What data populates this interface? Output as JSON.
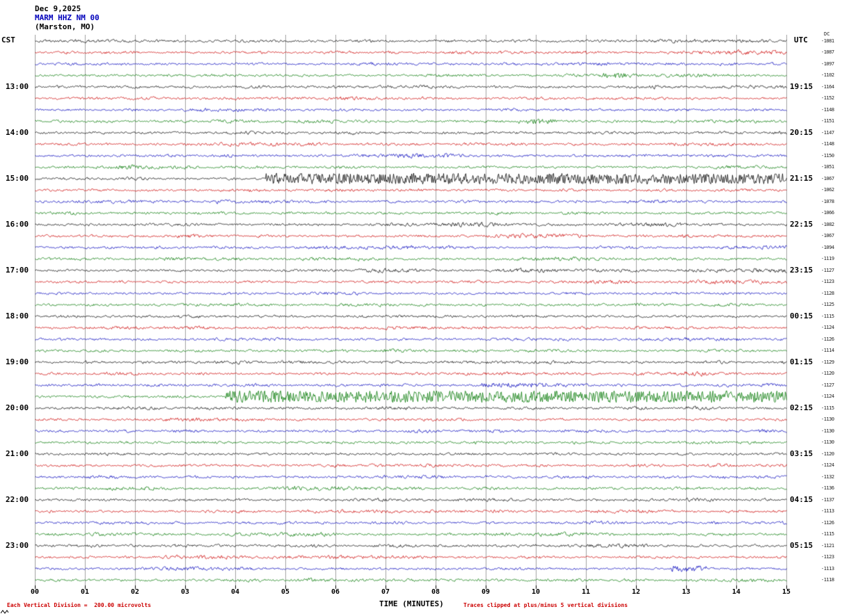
{
  "header": {
    "date": "Dec 9,2025",
    "station": "MARM HHZ NM 00",
    "location": "(Marston, MO)"
  },
  "axes": {
    "left_label": "CST",
    "right_label": "UTC",
    "dc_header": "DC",
    "x_title": "TIME (MINUTES)",
    "x_ticks": [
      "00",
      "01",
      "02",
      "03",
      "04",
      "05",
      "06",
      "07",
      "08",
      "09",
      "10",
      "11",
      "12",
      "13",
      "14",
      "15"
    ]
  },
  "footer": {
    "scale_note": "Each Vertical Division =  200.00 microvolts",
    "clip_note": "Traces clipped at plus/minus 5 vertical divisions"
  },
  "colors": {
    "black": "#000000",
    "red": "#cc0000",
    "blue": "#0000bb",
    "green": "#007700",
    "station_blue": "#0000bb",
    "note_red": "#cc0000",
    "grid": "#a0a0a0"
  },
  "chart_data": {
    "type": "line",
    "subtype": "seismogram-helicorder",
    "title": "MARM HHZ NM 00 (Marston, MO) Dec 9,2025",
    "xlabel": "TIME (MINUTES)",
    "x_range_minutes": [
      0,
      15
    ],
    "minutes_per_row": 15,
    "rows_per_hour": 4,
    "vertical_division_microvolts": 200.0,
    "clip_divisions": 5,
    "grid": true,
    "vertical_gridline_every_minutes": 1,
    "trace_color_cycle": [
      "black",
      "red",
      "blue",
      "green"
    ],
    "rows": [
      {
        "color": "black",
        "cst": "",
        "utc": "",
        "dc": "-1081"
      },
      {
        "color": "red",
        "cst": "",
        "utc": "",
        "dc": "-1087"
      },
      {
        "color": "blue",
        "cst": "",
        "utc": "",
        "dc": "-1097"
      },
      {
        "color": "green",
        "cst": "",
        "utc": "",
        "dc": "-1102"
      },
      {
        "color": "black",
        "cst": "13:00",
        "utc": "19:15",
        "dc": "-1164"
      },
      {
        "color": "red",
        "cst": "",
        "utc": "",
        "dc": "-1152"
      },
      {
        "color": "blue",
        "cst": "",
        "utc": "",
        "dc": "-1148"
      },
      {
        "color": "green",
        "cst": "",
        "utc": "",
        "dc": "-1151"
      },
      {
        "color": "black",
        "cst": "14:00",
        "utc": "20:15",
        "dc": "-1147"
      },
      {
        "color": "red",
        "cst": "",
        "utc": "",
        "dc": "-1148"
      },
      {
        "color": "blue",
        "cst": "",
        "utc": "",
        "dc": "-1150"
      },
      {
        "color": "green",
        "cst": "",
        "utc": "",
        "dc": "-1051"
      },
      {
        "color": "black",
        "cst": "15:00",
        "utc": "21:15",
        "dc": "-1067"
      },
      {
        "color": "red",
        "cst": "",
        "utc": "",
        "dc": "-1062"
      },
      {
        "color": "blue",
        "cst": "",
        "utc": "",
        "dc": "-1078"
      },
      {
        "color": "green",
        "cst": "",
        "utc": "",
        "dc": "-1066"
      },
      {
        "color": "black",
        "cst": "16:00",
        "utc": "22:15",
        "dc": "-1082"
      },
      {
        "color": "red",
        "cst": "",
        "utc": "",
        "dc": "-1067"
      },
      {
        "color": "blue",
        "cst": "",
        "utc": "",
        "dc": "-1094"
      },
      {
        "color": "green",
        "cst": "",
        "utc": "",
        "dc": "-1119"
      },
      {
        "color": "black",
        "cst": "17:00",
        "utc": "23:15",
        "dc": "-1127"
      },
      {
        "color": "red",
        "cst": "",
        "utc": "",
        "dc": "-1123"
      },
      {
        "color": "blue",
        "cst": "",
        "utc": "",
        "dc": "-1128"
      },
      {
        "color": "green",
        "cst": "",
        "utc": "",
        "dc": "-1125"
      },
      {
        "color": "black",
        "cst": "18:00",
        "utc": "00:15",
        "dc": "-1115"
      },
      {
        "color": "red",
        "cst": "",
        "utc": "",
        "dc": "-1124"
      },
      {
        "color": "blue",
        "cst": "",
        "utc": "",
        "dc": "-1126"
      },
      {
        "color": "green",
        "cst": "",
        "utc": "",
        "dc": "-1114"
      },
      {
        "color": "black",
        "cst": "19:00",
        "utc": "01:15",
        "dc": "-1129"
      },
      {
        "color": "red",
        "cst": "",
        "utc": "",
        "dc": "-1120"
      },
      {
        "color": "blue",
        "cst": "",
        "utc": "",
        "dc": "-1127"
      },
      {
        "color": "green",
        "cst": "",
        "utc": "",
        "dc": "-1124"
      },
      {
        "color": "black",
        "cst": "20:00",
        "utc": "02:15",
        "dc": "-1115"
      },
      {
        "color": "red",
        "cst": "",
        "utc": "",
        "dc": "-1130"
      },
      {
        "color": "blue",
        "cst": "",
        "utc": "",
        "dc": "-1130"
      },
      {
        "color": "green",
        "cst": "",
        "utc": "",
        "dc": "-1130"
      },
      {
        "color": "black",
        "cst": "21:00",
        "utc": "03:15",
        "dc": "-1120"
      },
      {
        "color": "red",
        "cst": "",
        "utc": "",
        "dc": "-1124"
      },
      {
        "color": "blue",
        "cst": "",
        "utc": "",
        "dc": "-1132"
      },
      {
        "color": "green",
        "cst": "",
        "utc": "",
        "dc": "-1136"
      },
      {
        "color": "black",
        "cst": "22:00",
        "utc": "04:15",
        "dc": "-1137"
      },
      {
        "color": "red",
        "cst": "",
        "utc": "",
        "dc": "-1113"
      },
      {
        "color": "blue",
        "cst": "",
        "utc": "",
        "dc": "-1126"
      },
      {
        "color": "green",
        "cst": "",
        "utc": "",
        "dc": "-1115"
      },
      {
        "color": "black",
        "cst": "23:00",
        "utc": "05:15",
        "dc": "-1121"
      },
      {
        "color": "red",
        "cst": "",
        "utc": "",
        "dc": "-1123"
      },
      {
        "color": "blue",
        "cst": "",
        "utc": "",
        "dc": "-1113"
      },
      {
        "color": "green",
        "cst": "",
        "utc": "",
        "dc": "-1118"
      }
    ],
    "events": [
      {
        "row": 12,
        "start_min": 4.6,
        "end_min": 15,
        "amplitude_divisions": 4.5,
        "description": "High-frequency large-amplitude burst, black trace 15:00-15:15 CST / 21:15 UTC"
      },
      {
        "row": 31,
        "start_min": 3.8,
        "end_min": 15,
        "amplitude_divisions": 5,
        "description": "Sustained very large event, green trace 19:45-20:00 CST / 02:15 UTC"
      },
      {
        "row": 3,
        "start_min": 11.3,
        "end_min": 11.9,
        "amplitude_divisions": 2,
        "description": "Small burst on green trace"
      },
      {
        "row": 7,
        "start_min": 9.6,
        "end_min": 10.4,
        "amplitude_divisions": 2,
        "description": "Small burst on green trace"
      },
      {
        "row": 30,
        "start_min": 8.9,
        "end_min": 10.2,
        "amplitude_divisions": 1.8,
        "description": "Moderate elevation on blue trace"
      },
      {
        "row": 46,
        "start_min": 12.7,
        "end_min": 13.4,
        "amplitude_divisions": 2.5,
        "description": "Spike on blue trace 23:30 CST"
      }
    ]
  }
}
